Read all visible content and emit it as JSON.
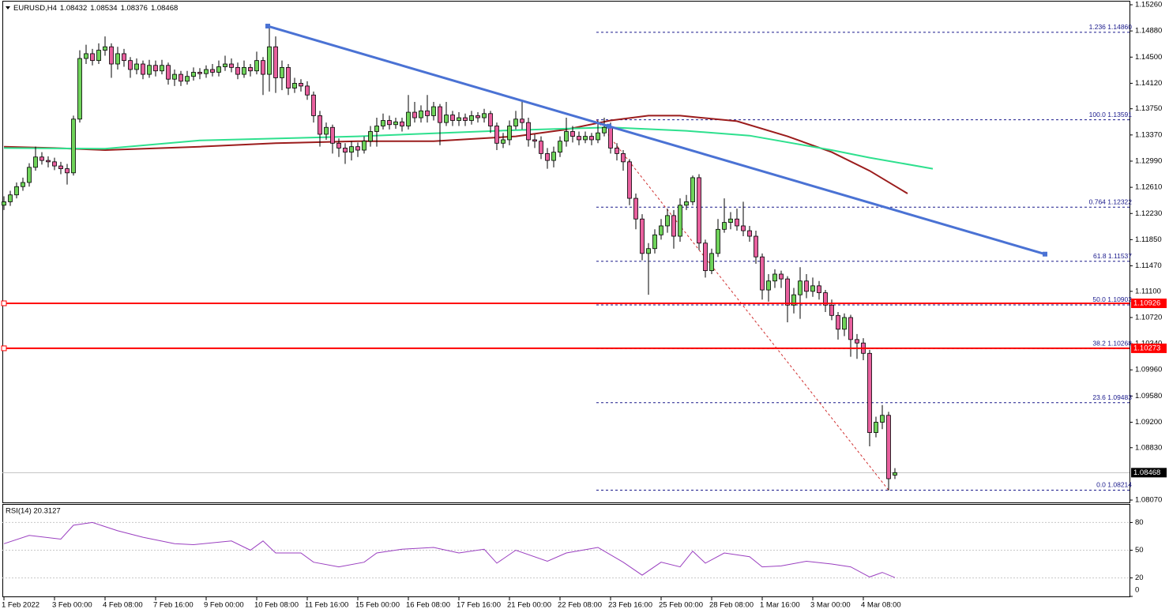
{
  "chart_data": {
    "type": "candlestick",
    "title": "EURUSD,H4",
    "categories": [
      "1 Feb 2022",
      null,
      null,
      null,
      null,
      null,
      null,
      null,
      "3 Feb 00:00",
      null,
      null,
      null,
      null,
      null,
      null,
      null,
      "4 Feb 08:00",
      null,
      null,
      null,
      null,
      null,
      null,
      null,
      "7 Feb 16:00",
      null,
      null,
      null,
      null,
      null,
      null,
      null,
      "9 Feb 00:00",
      null,
      null,
      null,
      null,
      null,
      null,
      null,
      "10 Feb 08:00",
      null,
      null,
      null,
      null,
      null,
      null,
      null,
      "11 Feb 16:00",
      null,
      null,
      null,
      null,
      null,
      null,
      null,
      "15 Feb 00:00",
      null,
      null,
      null,
      null,
      null,
      null,
      null,
      "16 Feb 08:00",
      null,
      null,
      null,
      null,
      null,
      null,
      null,
      "17 Feb 16:00",
      null,
      null,
      null,
      null,
      null,
      null,
      null,
      "21 Feb 00:00",
      null,
      null,
      null,
      null,
      null,
      null,
      null,
      "22 Feb 08:00",
      null,
      null,
      null,
      null,
      null,
      null,
      null,
      "23 Feb 16:00",
      null,
      null,
      null,
      null,
      null,
      null,
      null,
      "25 Feb 00:00",
      null,
      null,
      null,
      null,
      null,
      null,
      null,
      "28 Feb 08:00",
      null,
      null,
      null,
      null,
      null,
      null,
      null,
      "1 Mar 16:00",
      null,
      null,
      null,
      null,
      null,
      null,
      null,
      "3 Mar 00:00",
      null,
      null,
      null,
      null,
      null,
      null,
      null,
      "4 Mar 08:00",
      null,
      null,
      null,
      null,
      null
    ],
    "open": [
      1.1235,
      1.124,
      1.125,
      1.1262,
      1.1268,
      1.129,
      1.1305,
      1.13,
      1.1298,
      1.1292,
      1.1288,
      1.1282,
      1.136,
      1.1448,
      1.1455,
      1.1445,
      1.146,
      1.1465,
      1.144,
      1.1455,
      1.1445,
      1.1432,
      1.144,
      1.1425,
      1.1438,
      1.143,
      1.1438,
      1.1418,
      1.1425,
      1.1415,
      1.1422,
      1.1428,
      1.1426,
      1.1432,
      1.1428,
      1.1436,
      1.144,
      1.1435,
      1.1425,
      1.1435,
      1.143,
      1.1445,
      1.1425,
      1.1465,
      1.142,
      1.1435,
      1.1405,
      1.1412,
      1.1408,
      1.1395,
      1.1365,
      1.1338,
      1.1348,
      1.1325,
      1.1318,
      1.1312,
      1.132,
      1.1315,
      1.1328,
      1.1342,
      1.135,
      1.1358,
      1.1352,
      1.1356,
      1.135,
      1.137,
      1.1362,
      1.1372,
      1.1365,
      1.1378,
      1.1355,
      1.1366,
      1.1358,
      1.1362,
      1.1358,
      1.1365,
      1.1362,
      1.1368,
      1.135,
      1.1325,
      1.133,
      1.135,
      1.136,
      1.1355,
      1.133,
      1.1328,
      1.131,
      1.13,
      1.1312,
      1.1328,
      1.1342,
      1.1335,
      1.133,
      1.1335,
      1.133,
      1.134,
      1.1348,
      1.1318,
      1.131,
      1.1298,
      1.1245,
      1.1215,
      1.1165,
      1.1172,
      1.1192,
      1.1205,
      1.122,
      1.119,
      1.1235,
      1.124,
      1.1275,
      1.118,
      1.114,
      1.1165,
      1.12,
      1.121,
      1.1215,
      1.1205,
      1.1198,
      1.119,
      1.116,
      1.1112,
      1.1125,
      1.1135,
      1.1128,
      1.109,
      1.1105,
      1.1125,
      1.111,
      1.1118,
      1.1108,
      1.109,
      1.1075,
      1.1055,
      1.1072,
      1.104,
      1.1035,
      1.102,
      1.0905,
      1.092,
      1.093,
      1.08432
    ],
    "high": [
      1.1248,
      1.1256,
      1.1268,
      1.1275,
      1.1296,
      1.132,
      1.1312,
      1.1306,
      1.1304,
      1.1298,
      1.1295,
      1.1365,
      1.146,
      1.1468,
      1.1462,
      1.147,
      1.148,
      1.147,
      1.1465,
      1.1462,
      1.145,
      1.1448,
      1.1445,
      1.1446,
      1.1445,
      1.1446,
      1.1442,
      1.1432,
      1.143,
      1.143,
      1.1435,
      1.1434,
      1.1438,
      1.144,
      1.1445,
      1.1452,
      1.1448,
      1.1442,
      1.1445,
      1.144,
      1.1458,
      1.145,
      1.1496,
      1.148,
      1.1445,
      1.144,
      1.142,
      1.1418,
      1.1415,
      1.14,
      1.1372,
      1.1355,
      1.1352,
      1.1332,
      1.1325,
      1.1328,
      1.1326,
      1.1335,
      1.135,
      1.1362,
      1.1368,
      1.1365,
      1.1362,
      1.1362,
      1.1395,
      1.1385,
      1.138,
      1.1395,
      1.1385,
      1.1382,
      1.1385,
      1.1372,
      1.137,
      1.1368,
      1.1372,
      1.137,
      1.1375,
      1.1372,
      1.1355,
      1.134,
      1.1358,
      1.1372,
      1.1388,
      1.1362,
      1.1338,
      1.1335,
      1.1318,
      1.132,
      1.1335,
      1.1362,
      1.135,
      1.1342,
      1.1342,
      1.134,
      1.1358,
      1.1362,
      1.1355,
      1.1325,
      1.1315,
      1.1302,
      1.1252,
      1.1222,
      1.118,
      1.12,
      1.1215,
      1.123,
      1.1228,
      1.1245,
      1.125,
      1.1278,
      1.128,
      1.1185,
      1.1172,
      1.1215,
      1.1245,
      1.1225,
      1.123,
      1.124,
      1.1205,
      1.1198,
      1.1165,
      1.1135,
      1.1142,
      1.114,
      1.1132,
      1.1115,
      1.1145,
      1.1135,
      1.113,
      1.1125,
      1.1112,
      1.1098,
      1.108,
      1.1078,
      1.1076,
      1.1048,
      1.1042,
      1.1025,
      1.0928,
      1.0945,
      1.0935,
      1.08534
    ],
    "low": [
      1.1228,
      1.1234,
      1.1245,
      1.1256,
      1.1262,
      1.1285,
      1.1294,
      1.129,
      1.1286,
      1.128,
      1.1265,
      1.1278,
      1.1355,
      1.144,
      1.1438,
      1.144,
      1.1452,
      1.142,
      1.1432,
      1.1436,
      1.142,
      1.1425,
      1.1418,
      1.142,
      1.1422,
      1.1425,
      1.141,
      1.1408,
      1.1408,
      1.141,
      1.1416,
      1.1418,
      1.142,
      1.1422,
      1.1422,
      1.143,
      1.1428,
      1.1418,
      1.142,
      1.1422,
      1.1425,
      1.1395,
      1.14,
      1.1398,
      1.1402,
      1.1395,
      1.1398,
      1.14,
      1.1388,
      1.1355,
      1.132,
      1.133,
      1.131,
      1.1305,
      1.1295,
      1.13,
      1.1305,
      1.131,
      1.132,
      1.132,
      1.1345,
      1.1345,
      1.1346,
      1.1342,
      1.1345,
      1.1355,
      1.1355,
      1.1355,
      1.1358,
      1.1322,
      1.135,
      1.135,
      1.135,
      1.135,
      1.1352,
      1.1355,
      1.1355,
      1.134,
      1.1315,
      1.1318,
      1.1322,
      1.1345,
      1.1345,
      1.132,
      1.1318,
      1.1302,
      1.1288,
      1.129,
      1.1305,
      1.132,
      1.1326,
      1.1322,
      1.1325,
      1.1322,
      1.1325,
      1.1335,
      1.131,
      1.13,
      1.1285,
      1.1235,
      1.12,
      1.1155,
      1.1105,
      1.1165,
      1.1185,
      1.1195,
      1.1172,
      1.1182,
      1.1228,
      1.1235,
      1.117,
      1.113,
      1.1135,
      1.116,
      1.1195,
      1.12,
      1.1198,
      1.119,
      1.1182,
      1.115,
      1.1098,
      1.1095,
      1.1115,
      1.1115,
      1.1065,
      1.1078,
      1.107,
      1.11,
      1.1102,
      1.1098,
      1.108,
      1.1068,
      1.104,
      1.1045,
      1.1015,
      1.1012,
      1.101,
      1.0885,
      1.0898,
      1.091,
      1.0821,
      1.08376
    ],
    "close": [
      1.124,
      1.125,
      1.1262,
      1.1268,
      1.129,
      1.1305,
      1.13,
      1.1298,
      1.1292,
      1.1288,
      1.1282,
      1.136,
      1.1448,
      1.1455,
      1.1445,
      1.146,
      1.1465,
      1.144,
      1.1455,
      1.1445,
      1.1432,
      1.144,
      1.1425,
      1.1438,
      1.143,
      1.1438,
      1.1418,
      1.1425,
      1.1415,
      1.1422,
      1.1428,
      1.1426,
      1.1432,
      1.1428,
      1.1436,
      1.144,
      1.1435,
      1.1425,
      1.1435,
      1.143,
      1.1445,
      1.1425,
      1.1465,
      1.142,
      1.1435,
      1.1405,
      1.1412,
      1.1408,
      1.1395,
      1.1365,
      1.1338,
      1.1348,
      1.1325,
      1.1318,
      1.1312,
      1.132,
      1.1315,
      1.1328,
      1.1342,
      1.135,
      1.1358,
      1.1352,
      1.1356,
      1.135,
      1.137,
      1.1362,
      1.1372,
      1.1365,
      1.1378,
      1.1355,
      1.1366,
      1.1358,
      1.1362,
      1.1358,
      1.1365,
      1.1362,
      1.1368,
      1.135,
      1.1325,
      1.133,
      1.135,
      1.136,
      1.1355,
      1.133,
      1.1328,
      1.131,
      1.13,
      1.1312,
      1.1328,
      1.1342,
      1.1335,
      1.133,
      1.1335,
      1.133,
      1.134,
      1.1348,
      1.1318,
      1.131,
      1.1298,
      1.1245,
      1.1215,
      1.1165,
      1.1172,
      1.1192,
      1.1205,
      1.122,
      1.119,
      1.1235,
      1.124,
      1.1275,
      1.118,
      1.114,
      1.1165,
      1.12,
      1.121,
      1.1215,
      1.1205,
      1.1198,
      1.119,
      1.116,
      1.1112,
      1.1125,
      1.1135,
      1.1128,
      1.109,
      1.1105,
      1.1125,
      1.111,
      1.1118,
      1.1108,
      1.109,
      1.1075,
      1.1055,
      1.1072,
      1.104,
      1.1035,
      1.102,
      1.0905,
      1.092,
      1.093,
      1.0838,
      1.08468
    ],
    "xlim": [
      -0.625,
      178.125
    ],
    "ylim": [
      1.08036,
      1.15329
    ],
    "yticks": [
      {
        "value": 1.1526,
        "label": "1.15260"
      },
      {
        "value": 1.1488,
        "label": "1.14880"
      },
      {
        "value": 1.145,
        "label": "1.14500"
      },
      {
        "value": 1.1412,
        "label": "1.14120"
      },
      {
        "value": 1.1375,
        "label": "1.13750"
      },
      {
        "value": 1.1337,
        "label": "1.13370"
      },
      {
        "value": 1.1299,
        "label": "1.12990"
      },
      {
        "value": 1.1261,
        "label": "1.12610"
      },
      {
        "value": 1.1223,
        "label": "1.12230"
      },
      {
        "value": 1.1185,
        "label": "1.11850"
      },
      {
        "value": 1.1147,
        "label": "1.11470"
      },
      {
        "value": 1.111,
        "label": "1.11100"
      },
      {
        "value": 1.1072,
        "label": "1.10720"
      },
      {
        "value": 1.1034,
        "label": "1.10340"
      },
      {
        "value": 1.0996,
        "label": "1.09960"
      },
      {
        "value": 1.0958,
        "label": "1.09580"
      },
      {
        "value": 1.092,
        "label": "1.09200"
      },
      {
        "value": 1.0883,
        "label": "1.08830"
      },
      {
        "value": 1.0807,
        "label": "1.08070"
      }
    ],
    "up_color": "#6fd35a",
    "down_color": "#e8609e",
    "moving_averages": [
      {
        "color": "#9b1c1c",
        "x": [
          0,
          8,
          16,
          31,
          43,
          56,
          68,
          81,
          89,
          96,
          102,
          107,
          116,
          124,
          131,
          137,
          143
        ],
        "values": [
          1.132,
          1.1318,
          1.1315,
          1.132,
          1.1325,
          1.1328,
          1.1328,
          1.1335,
          1.1345,
          1.1358,
          1.1365,
          1.1365,
          1.1357,
          1.1335,
          1.1312,
          1.1285,
          1.1252
        ]
      },
      {
        "color": "#2ee08e",
        "x": [
          0,
          16,
          31,
          56,
          81,
          96,
          108,
          118,
          131,
          137,
          147
        ],
        "values": [
          1.1318,
          1.1317,
          1.1329,
          1.1335,
          1.1344,
          1.1348,
          1.1343,
          1.1336,
          1.1315,
          1.1304,
          1.1288
        ]
      }
    ],
    "trendline": {
      "color": "#4a72d4",
      "x": [
        41.75,
        164.75
      ],
      "values": [
        1.1495,
        1.1164
      ]
    },
    "fibonacci": {
      "color": "#1a1a8c",
      "levels": [
        {
          "label": "1.236 1.14860",
          "value": 1.1486
        },
        {
          "label": "100.0 1.13591",
          "value": 1.13591
        },
        {
          "label": "0.764 1.12322",
          "value": 1.12322
        },
        {
          "label": "61.8 1.11537",
          "value": 1.11537
        },
        {
          "label": "50.0 1.10903",
          "value": 1.10903
        },
        {
          "label": "38.2 1.10268",
          "value": 1.10268
        },
        {
          "label": "23.6 1.09483",
          "value": 1.09483
        },
        {
          "label": "0.0 1.08214",
          "value": 1.08214
        }
      ]
    },
    "lines": [
      {
        "value": 1.10926,
        "label": "1.10926",
        "color": "#ff0000"
      },
      {
        "value": 1.10273,
        "label": "1.10273",
        "color": "#ff0000"
      }
    ],
    "last_price": 1.08468,
    "rsi": {
      "title": "RSI(14) 20.3127",
      "color": "#9a3fc0",
      "ylim": [
        0,
        100
      ],
      "yticks": [
        80,
        50,
        20,
        0
      ],
      "x": [
        0,
        4,
        9,
        11,
        14,
        18,
        22,
        27,
        30,
        36,
        39,
        41,
        43,
        47,
        49,
        53,
        57,
        59,
        63,
        68,
        72,
        76,
        78,
        81,
        86,
        89,
        94,
        98,
        101,
        104,
        107,
        109,
        111,
        114,
        118,
        120,
        123,
        127,
        131,
        134,
        137,
        139,
        141
      ],
      "values": [
        57,
        66,
        62,
        77,
        80,
        71,
        64,
        57,
        56,
        60,
        50,
        60,
        47,
        47,
        37,
        32,
        37,
        47,
        51,
        53,
        47,
        51,
        36,
        50,
        38,
        47,
        53,
        37,
        23,
        37,
        32,
        49,
        36,
        47,
        43,
        32,
        33,
        38,
        35,
        32,
        21,
        26,
        20.3127
      ]
    }
  }
}
